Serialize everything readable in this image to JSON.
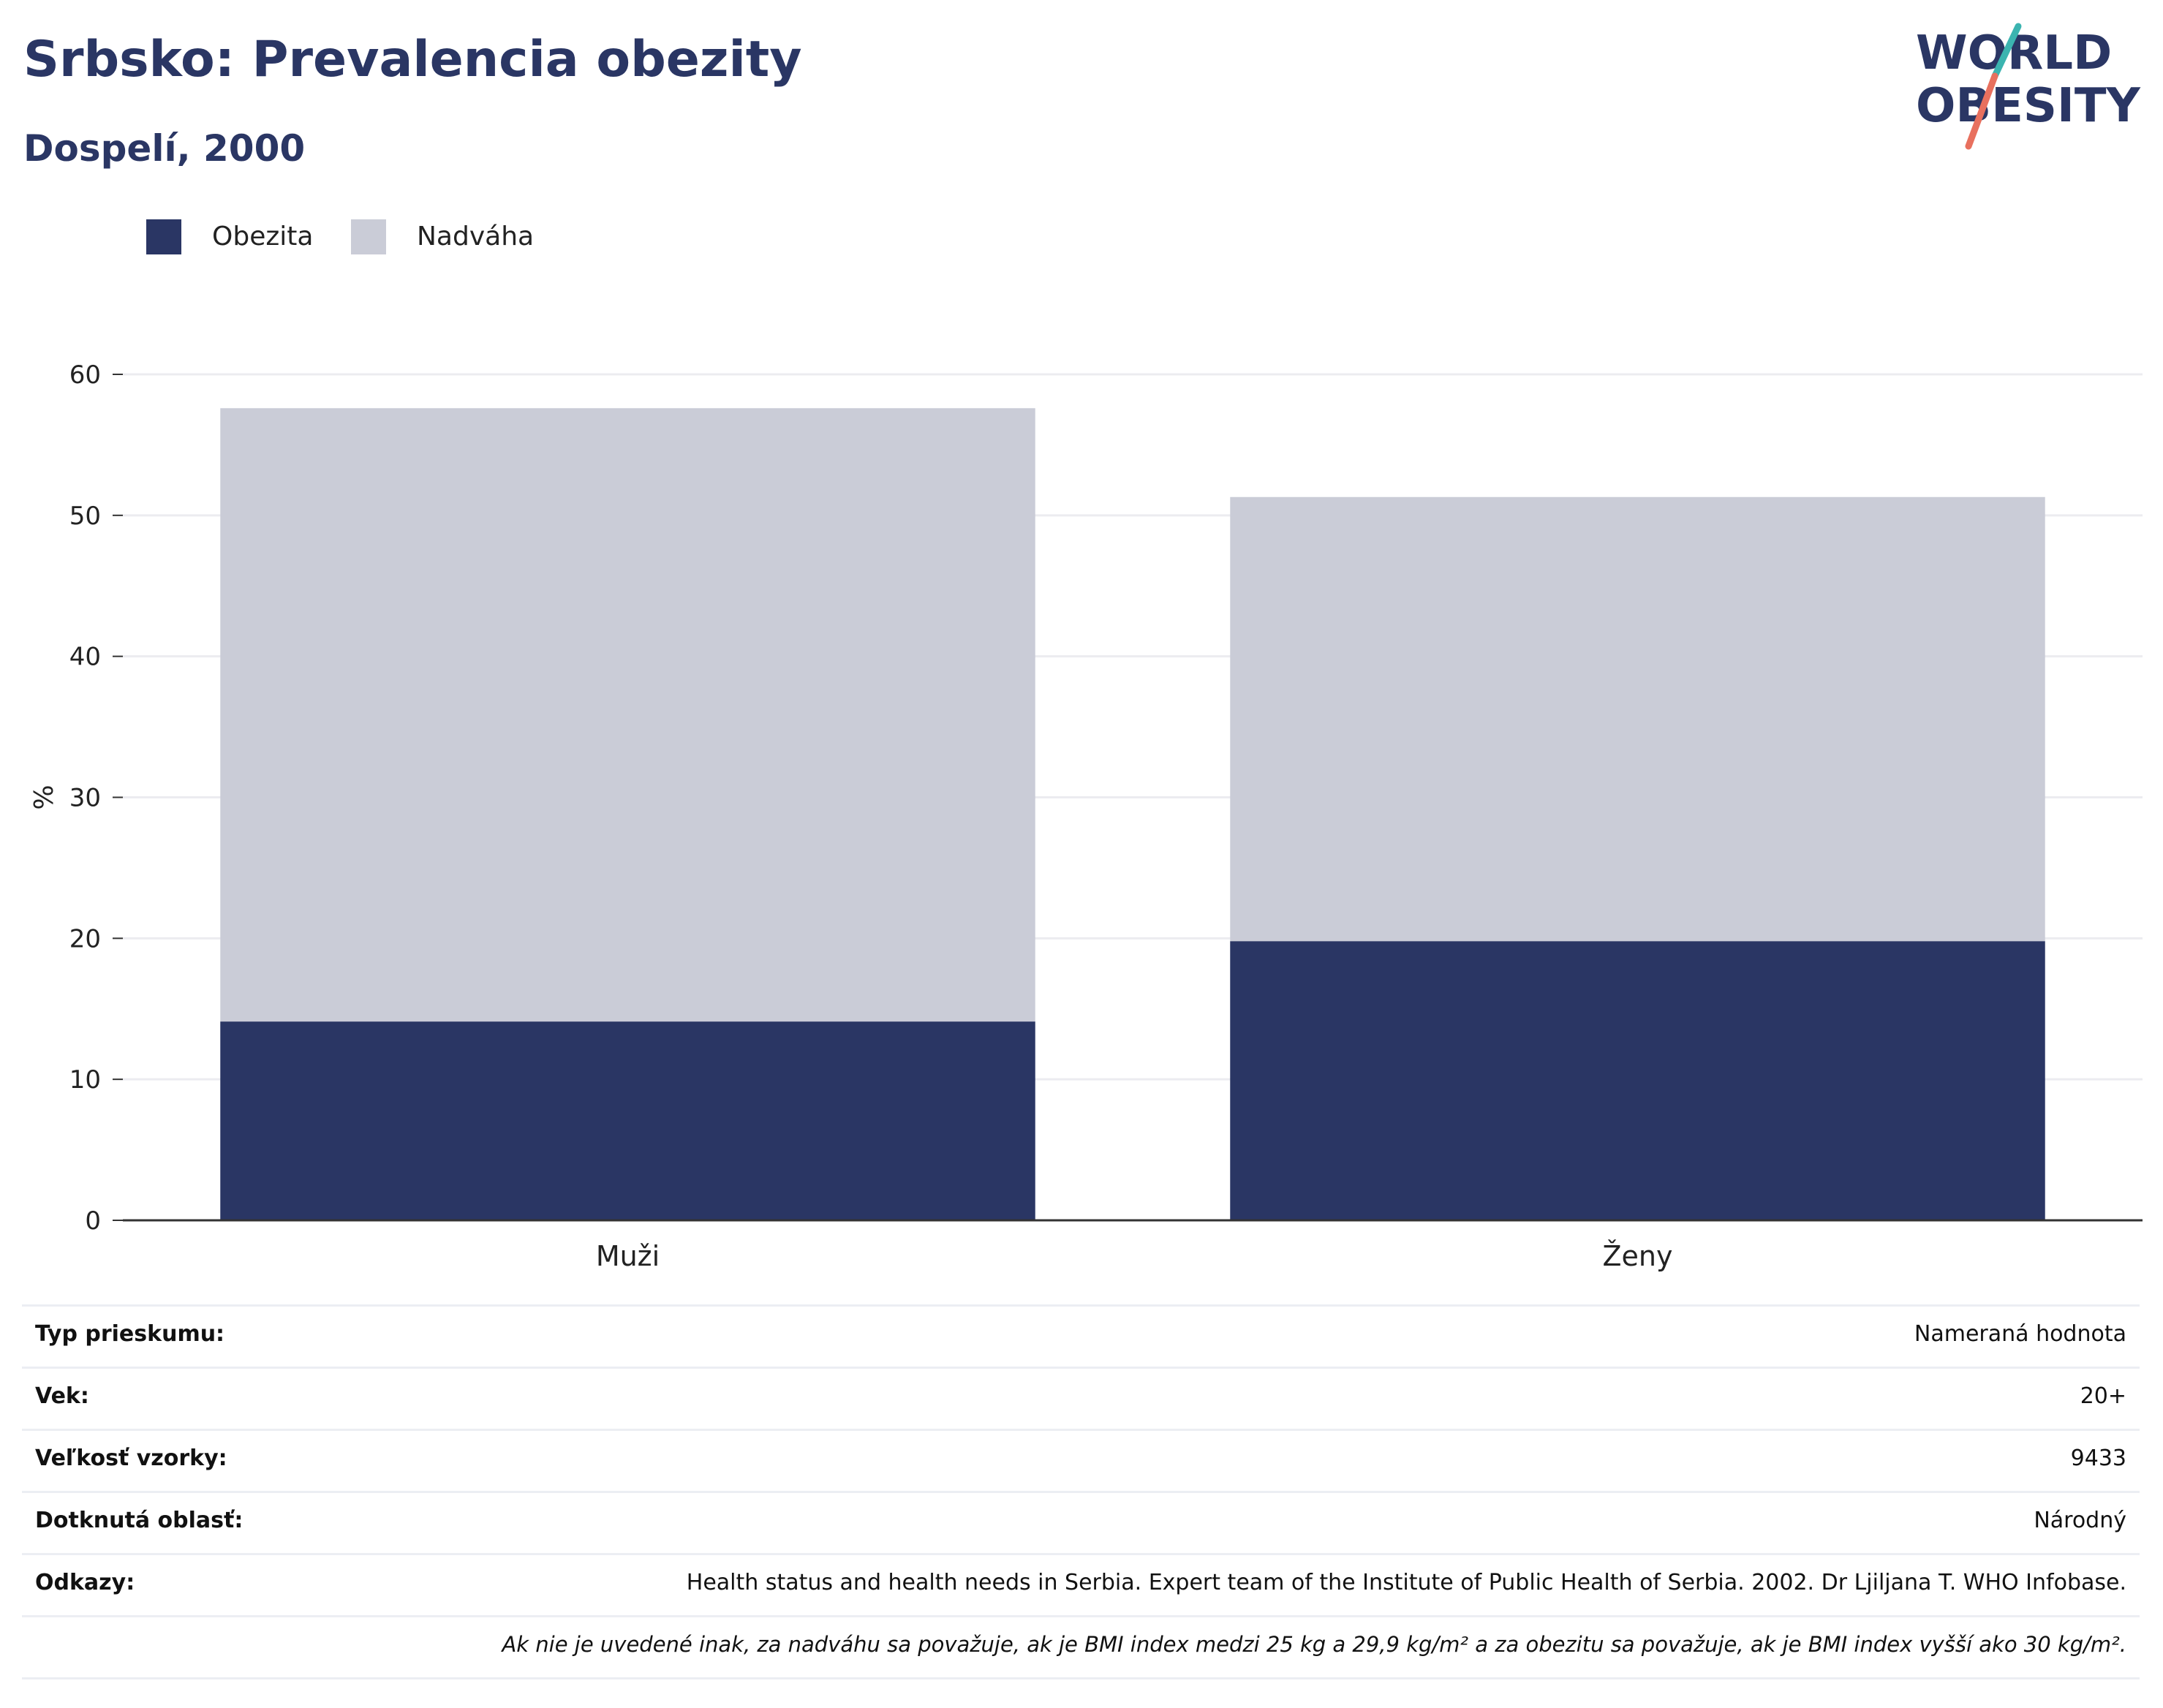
{
  "header": {
    "title": "Srbsko: Prevalencia obezity",
    "subtitle": "Dospelí, 2000"
  },
  "logo": {
    "line1": "WORLD",
    "line2": "OBESITY",
    "colors": {
      "text": "#2a3664",
      "slash_top": "#3bb4b0",
      "slash_bottom": "#e8705e"
    }
  },
  "colors": {
    "obesity": "#2a3664",
    "overweight": "#caccd7",
    "grid": "#ececf0",
    "axis": "#333333"
  },
  "chart_data": {
    "type": "bar",
    "stacked": true,
    "categories": [
      "Muži",
      "Ženy"
    ],
    "series": [
      {
        "name": "Obezita",
        "values": [
          14.1,
          19.8
        ],
        "color": "#2a3664"
      },
      {
        "name": "Nadváha",
        "values": [
          43.5,
          31.5
        ],
        "color": "#caccd7"
      }
    ],
    "ylabel": "%",
    "ylim": [
      0,
      60
    ],
    "yticks": [
      0,
      10,
      20,
      30,
      40,
      50,
      60
    ],
    "grid": true,
    "legend_position": "top-left"
  },
  "info": {
    "rows": [
      {
        "key": "Typ prieskumu:",
        "value": "Nameraná hodnota"
      },
      {
        "key": "Vek:",
        "value": "20+"
      },
      {
        "key": "Veľkosť vzorky:",
        "value": "9433"
      },
      {
        "key": "Dotknutá oblasť:",
        "value": "Národný"
      },
      {
        "key": "Odkazy:",
        "value": "Health status and health needs in Serbia. Expert team of the Institute of Public Health of Serbia. 2002. Dr Ljiljana T. WHO Infobase."
      }
    ],
    "note": "Ak nie je uvedené inak, za nadváhu sa považuje, ak je BMI index medzi 25 kg a 29,9 kg/m² a za obezitu sa považuje, ak je BMI index vyšší ako 30 kg/m²."
  }
}
